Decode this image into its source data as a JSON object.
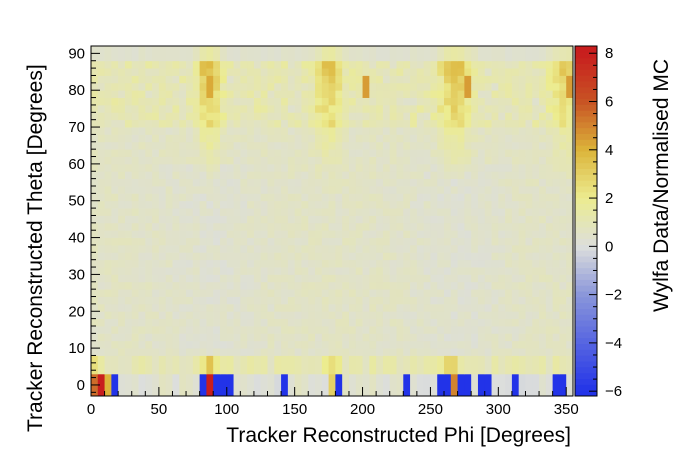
{
  "chart_data": {
    "type": "heatmap",
    "title": "",
    "xlabel": "Tracker Reconstructed Phi [Degrees]",
    "ylabel": "Tracker Reconstructed Theta [Degrees]",
    "zlabel": "Wylfa Data/Normalised MC",
    "xlim": [
      0,
      355
    ],
    "ylim": [
      -3,
      92
    ],
    "zlim": [
      -6.2,
      8.3
    ],
    "xticks": [
      "0",
      "50",
      "100",
      "150",
      "200",
      "250",
      "300",
      "350"
    ],
    "yticks": [
      "0",
      "10",
      "20",
      "30",
      "40",
      "50",
      "60",
      "70",
      "80",
      "90"
    ],
    "zticks": [
      "−6",
      "−4",
      "−2",
      "0",
      "2",
      "4",
      "6",
      "8"
    ],
    "colormap_stops": [
      {
        "value": -6,
        "color": "#2233e8"
      },
      {
        "value": -2,
        "color": "#8a96da"
      },
      {
        "value": 0,
        "color": "#dcdedc"
      },
      {
        "value": 2,
        "color": "#ecec90"
      },
      {
        "value": 4,
        "color": "#dcb43a"
      },
      {
        "value": 6,
        "color": "#c85424"
      },
      {
        "value": 8,
        "color": "#c81e1e"
      }
    ],
    "x_bin_width_deg": 5,
    "theta_bands_deg": [
      {
        "from": -3,
        "to": 3
      },
      {
        "from": 3,
        "to": 8
      },
      {
        "from": 8,
        "to": 88
      },
      {
        "from": 88,
        "to": 92
      }
    ],
    "description": "Data/MC ratio map over phi (0-355) and theta (-3-92). Bulk ~1 (grey/light yellow). Enhanced yellow-orange streaks near phi ~85-90, ~170-180 and ~260-275 at theta 70-90. Bottom row (theta<3) shows strong blue (-6) bins and red (+8) bins at phi ~5 and ~88.",
    "bottom_row_notable_bins": [
      {
        "phi": 2.5,
        "value": 5.5
      },
      {
        "phi": 7.5,
        "value": 8
      },
      {
        "phi": 12.5,
        "value": 4
      },
      {
        "phi": 17.5,
        "value": -6
      },
      {
        "phi": 82.5,
        "value": -6
      },
      {
        "phi": 87.5,
        "value": 8
      },
      {
        "phi": 92.5,
        "value": -6
      },
      {
        "phi": 97.5,
        "value": -6
      },
      {
        "phi": 102.5,
        "value": -6
      },
      {
        "phi": 142.5,
        "value": -6
      },
      {
        "phi": 177.5,
        "value": 3
      },
      {
        "phi": 182.5,
        "value": -6
      },
      {
        "phi": 232.5,
        "value": -6
      },
      {
        "phi": 257.5,
        "value": -6
      },
      {
        "phi": 262.5,
        "value": -6
      },
      {
        "phi": 267.5,
        "value": 5
      },
      {
        "phi": 272.5,
        "value": -6
      },
      {
        "phi": 277.5,
        "value": -6
      },
      {
        "phi": 287.5,
        "value": -6
      },
      {
        "phi": 292.5,
        "value": -6
      },
      {
        "phi": 312.5,
        "value": -6
      },
      {
        "phi": 342.5,
        "value": -6
      },
      {
        "phi": 347.5,
        "value": -6
      }
    ]
  }
}
